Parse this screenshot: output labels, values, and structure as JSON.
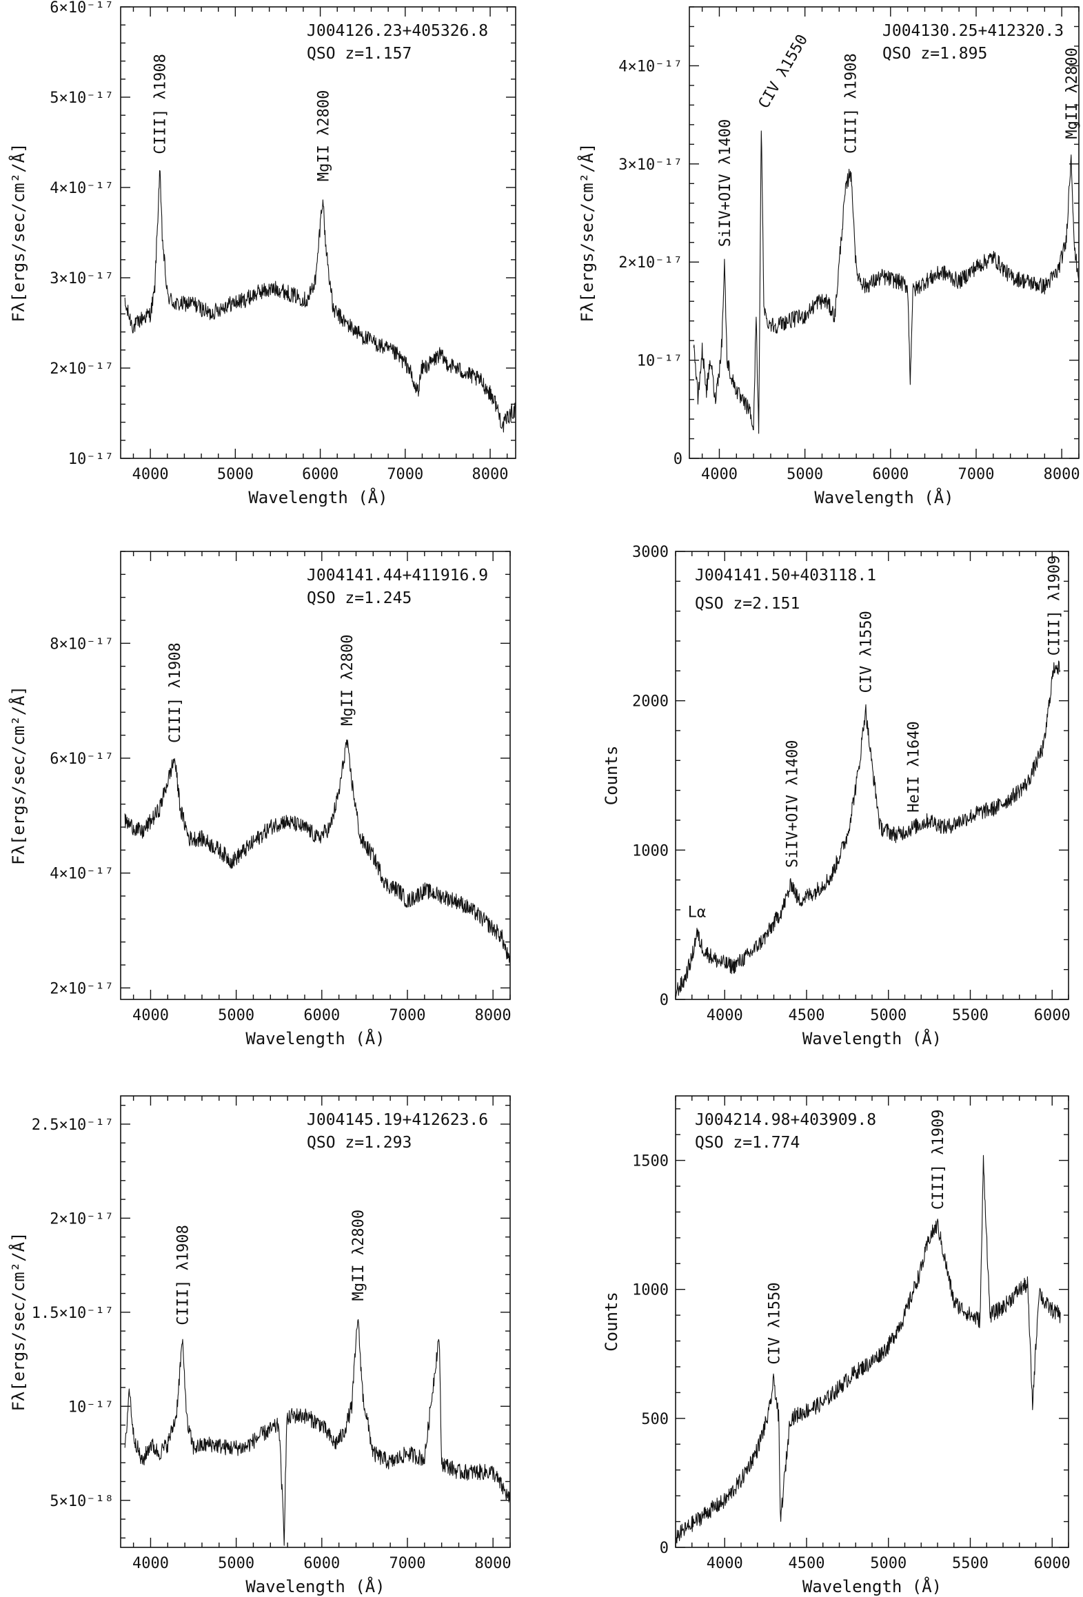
{
  "figure_title": "",
  "chart_data": [
    {
      "type": "line",
      "title": "J004126.23+405326.8",
      "subtitle": "QSO z=1.157",
      "xlabel": "Wavelength (Å)",
      "ylabel": "Fλ[ergs/sec/cm²/Å]",
      "xlim": [
        3650,
        8300
      ],
      "ylim": [
        1e-17,
        6e-17
      ],
      "xticks": [
        4000,
        5000,
        6000,
        7000,
        8000
      ],
      "yticks": [
        1e-17,
        2e-17,
        3e-17,
        4e-17,
        5e-17,
        6e-17
      ],
      "ytick_labels": [
        "10⁻¹⁷",
        "2×10⁻¹⁷",
        "3×10⁻¹⁷",
        "4×10⁻¹⁷",
        "5×10⁻¹⁷",
        "6×10⁻¹⁷"
      ],
      "grid": false,
      "lines": [
        {
          "label": "CIII] λ1908",
          "x": 4110
        },
        {
          "label": "MgII λ2800",
          "x": 6030
        }
      ],
      "series": [
        {
          "x": [
            3700,
            3800,
            3900,
            4000,
            4050,
            4080,
            4110,
            4140,
            4200,
            4300,
            4500,
            4700,
            4900,
            5100,
            5300,
            5500,
            5700,
            5850,
            5950,
            6000,
            6030,
            6060,
            6150,
            6300,
            6500,
            6700,
            6900,
            7050,
            7100,
            7150,
            7200,
            7300,
            7400,
            7500,
            7700,
            7900,
            8050,
            8150,
            8200,
            8300
          ],
          "y": [
            2.7e-17,
            2.45e-17,
            2.55e-17,
            2.6e-17,
            2.85e-17,
            3.5e-17,
            4.2e-17,
            3.45e-17,
            2.8e-17,
            2.7e-17,
            2.72e-17,
            2.6e-17,
            2.7e-17,
            2.75e-17,
            2.85e-17,
            2.88e-17,
            2.8e-17,
            2.75e-17,
            3e-17,
            3.6e-17,
            3.9e-17,
            3.4e-17,
            2.65e-17,
            2.5e-17,
            2.35e-17,
            2.25e-17,
            2.15e-17,
            2e-17,
            1.8e-17,
            1.75e-17,
            2e-17,
            2.05e-17,
            2.15e-17,
            2.05e-17,
            1.95e-17,
            1.85e-17,
            1.65e-17,
            1.35e-17,
            1.45e-17,
            1.55e-17
          ]
        }
      ]
    },
    {
      "type": "line",
      "title": "J004130.25+412320.3",
      "subtitle": "QSO z=1.895",
      "xlabel": "Wavelength (Å)",
      "ylabel": "Fλ[ergs/sec/cm²/Å]",
      "xlim": [
        3650,
        8200
      ],
      "ylim": [
        0,
        4.6e-17
      ],
      "xticks": [
        4000,
        5000,
        6000,
        7000,
        8000
      ],
      "yticks": [
        0,
        1e-17,
        2e-17,
        3e-17,
        4e-17
      ],
      "ytick_labels": [
        "0",
        "10⁻¹⁷",
        "2×10⁻¹⁷",
        "3×10⁻¹⁷",
        "4×10⁻¹⁷"
      ],
      "grid": false,
      "lines": [
        {
          "label": "SiIV+OIV λ1400",
          "x": 4060
        },
        {
          "label": "CIV λ1550",
          "x": 4490,
          "rotation": -60
        },
        {
          "label": "CIII] λ1908",
          "x": 5530
        },
        {
          "label": "MgII λ2800",
          "x": 8110
        }
      ],
      "series": [
        {
          "x": [
            3700,
            3750,
            3800,
            3850,
            3900,
            3950,
            4000,
            4030,
            4060,
            4090,
            4150,
            4250,
            4350,
            4400,
            4430,
            4460,
            4490,
            4520,
            4550,
            4650,
            4800,
            5000,
            5150,
            5250,
            5350,
            5420,
            5470,
            5530,
            5560,
            5600,
            5700,
            5900,
            6100,
            6200,
            6230,
            6260,
            6400,
            6600,
            6800,
            7000,
            7200,
            7400,
            7600,
            7800,
            7950,
            8050,
            8110,
            8150,
            8200
          ],
          "y": [
            1.2e-17,
            6e-18,
            1.1e-17,
            7e-18,
            1e-17,
            6e-18,
            9e-18,
            1.2e-17,
            2e-17,
            1e-17,
            8e-18,
            6e-18,
            5e-18,
            3e-18,
            1.5e-17,
            2e-18,
            3.4e-17,
            1.6e-17,
            1.4e-17,
            1.35e-17,
            1.4e-17,
            1.45e-17,
            1.6e-17,
            1.6e-17,
            1.45e-17,
            2.2e-17,
            2.7e-17,
            2.95e-17,
            2.6e-17,
            1.9e-17,
            1.75e-17,
            1.85e-17,
            1.8e-17,
            1.75e-17,
            8e-18,
            1.7e-17,
            1.8e-17,
            1.9e-17,
            1.8e-17,
            1.95e-17,
            2.05e-17,
            1.85e-17,
            1.8e-17,
            1.75e-17,
            1.9e-17,
            2.2e-17,
            3.1e-17,
            2.1e-17,
            1.85e-17
          ]
        }
      ]
    },
    {
      "type": "line",
      "title": "J004141.44+411916.9",
      "subtitle": "QSO z=1.245",
      "xlabel": "Wavelength (Å)",
      "ylabel": "Fλ[ergs/sec/cm²/Å]",
      "xlim": [
        3650,
        8200
      ],
      "ylim": [
        1.8e-17,
        9.6e-17
      ],
      "xticks": [
        4000,
        5000,
        6000,
        7000,
        8000
      ],
      "yticks": [
        2e-17,
        4e-17,
        6e-17,
        8e-17
      ],
      "ytick_labels": [
        "2×10⁻¹⁷",
        "4×10⁻¹⁷",
        "6×10⁻¹⁷",
        "8×10⁻¹⁷"
      ],
      "grid": false,
      "lines": [
        {
          "label": "CIII] λ1908",
          "x": 4280
        },
        {
          "label": "MgII λ2800",
          "x": 6290
        }
      ],
      "series": [
        {
          "x": [
            3700,
            3800,
            3900,
            4000,
            4100,
            4200,
            4280,
            4350,
            4450,
            4600,
            4800,
            4950,
            5100,
            5250,
            5400,
            5550,
            5700,
            5850,
            5950,
            6100,
            6200,
            6290,
            6350,
            6450,
            6600,
            6750,
            6900,
            7000,
            7100,
            7200,
            7400,
            7600,
            7800,
            7950,
            8100,
            8200
          ],
          "y": [
            4.9e-17,
            4.8e-17,
            4.7e-17,
            4.9e-17,
            5.1e-17,
            5.6e-17,
            6e-17,
            5.1e-17,
            4.6e-17,
            4.6e-17,
            4.4e-17,
            4.2e-17,
            4.4e-17,
            4.6e-17,
            4.8e-17,
            4.9e-17,
            4.85e-17,
            4.75e-17,
            4.6e-17,
            4.8e-17,
            5.4e-17,
            6.3e-17,
            5.6e-17,
            4.6e-17,
            4.3e-17,
            3.8e-17,
            3.7e-17,
            3.5e-17,
            3.6e-17,
            3.7e-17,
            3.6e-17,
            3.5e-17,
            3.3e-17,
            3.1e-17,
            2.9e-17,
            2.4e-17
          ]
        }
      ]
    },
    {
      "type": "line",
      "title": "J004141.50+403118.1",
      "subtitle": "QSO z=2.151",
      "xlabel": "Wavelength (Å)",
      "ylabel": "Counts",
      "xlim": [
        3700,
        6100
      ],
      "ylim": [
        0,
        3000
      ],
      "xticks": [
        4000,
        4500,
        5000,
        5500,
        6000
      ],
      "yticks": [
        0,
        1000,
        2000,
        3000
      ],
      "ytick_labels": [
        "0",
        "1000",
        "2000",
        "3000"
      ],
      "grid": false,
      "lines": [
        {
          "label": "Lα",
          "x": 3830,
          "horizontal": true
        },
        {
          "label": "SiIV+OIV λ1400",
          "x": 4410
        },
        {
          "label": "CIV λ1550",
          "x": 4860
        },
        {
          "label": "HeII λ1640",
          "x": 5150
        },
        {
          "label": "CIII] λ1909",
          "x": 6010
        }
      ],
      "series": [
        {
          "x": [
            3700,
            3750,
            3800,
            3830,
            3850,
            3880,
            3950,
            4050,
            4150,
            4250,
            4350,
            4410,
            4450,
            4550,
            4650,
            4750,
            4820,
            4860,
            4890,
            4950,
            5050,
            5150,
            5250,
            5350,
            5450,
            5550,
            5650,
            5750,
            5850,
            5950,
            6000,
            6020,
            6050
          ],
          "y": [
            50,
            120,
            280,
            450,
            380,
            320,
            260,
            220,
            300,
            420,
            600,
            780,
            660,
            720,
            820,
            1100,
            1550,
            1950,
            1650,
            1150,
            1100,
            1150,
            1200,
            1150,
            1200,
            1250,
            1280,
            1350,
            1450,
            1700,
            2150,
            2250,
            2200
          ]
        }
      ]
    },
    {
      "type": "line",
      "title": "J004145.19+412623.6",
      "subtitle": "QSO z=1.293",
      "xlabel": "Wavelength (Å)",
      "ylabel": "Fλ[ergs/sec/cm²/Å]",
      "xlim": [
        3650,
        8200
      ],
      "ylim": [
        2.5e-18,
        2.65e-17
      ],
      "xticks": [
        4000,
        5000,
        6000,
        7000,
        8000
      ],
      "yticks": [
        5e-18,
        1e-17,
        1.5e-17,
        2e-17,
        2.5e-17
      ],
      "ytick_labels": [
        "5×10⁻¹⁸",
        "10⁻¹⁷",
        "1.5×10⁻¹⁷",
        "2×10⁻¹⁷",
        "2.5×10⁻¹⁷"
      ],
      "grid": false,
      "lines": [
        {
          "label": "CIII] λ1908",
          "x": 4370
        },
        {
          "label": "MgII λ2800",
          "x": 6420
        }
      ],
      "series": [
        {
          "x": [
            3700,
            3750,
            3800,
            3900,
            4000,
            4100,
            4200,
            4300,
            4370,
            4430,
            4500,
            4700,
            4900,
            5100,
            5300,
            5500,
            5560,
            5590,
            5650,
            5800,
            6000,
            6150,
            6250,
            6350,
            6420,
            6480,
            6600,
            6800,
            7000,
            7200,
            7370,
            7400,
            7600,
            7800,
            8000,
            8200
          ],
          "y": [
            7.5e-18,
            1.1e-17,
            8.5e-18,
            7e-18,
            8e-18,
            7.5e-18,
            8e-18,
            9.5e-18,
            1.35e-17,
            9e-18,
            7.8e-18,
            8e-18,
            7.8e-18,
            7.8e-18,
            8.5e-18,
            9e-18,
            3e-18,
            9.2e-18,
            9.5e-18,
            9.5e-18,
            9e-18,
            8e-18,
            8.5e-18,
            1e-17,
            1.48e-17,
            1.05e-17,
            7.5e-18,
            7e-18,
            7.5e-18,
            7.2e-18,
            1.38e-17,
            7e-18,
            6.5e-18,
            6.5e-18,
            6.5e-18,
            5e-18
          ]
        }
      ]
    },
    {
      "type": "line",
      "title": "J004214.98+403909.8",
      "subtitle": "QSO z=1.774",
      "xlabel": "Wavelength (Å)",
      "ylabel": "Counts",
      "xlim": [
        3700,
        6100
      ],
      "ylim": [
        0,
        1750
      ],
      "xticks": [
        4000,
        4500,
        5000,
        5500,
        6000
      ],
      "yticks": [
        0,
        500,
        1000,
        1500
      ],
      "ytick_labels": [
        "0",
        "500",
        "1000",
        "1500"
      ],
      "grid": false,
      "lines": [
        {
          "label": "CIV λ1550",
          "x": 4300
        },
        {
          "label": "CIII] λ1909",
          "x": 5300
        }
      ],
      "series": [
        {
          "x": [
            3700,
            3800,
            3900,
            4000,
            4100,
            4200,
            4270,
            4300,
            4330,
            4340,
            4400,
            4500,
            4600,
            4700,
            4800,
            4900,
            5000,
            5100,
            5200,
            5250,
            5300,
            5350,
            5400,
            5500,
            5560,
            5580,
            5620,
            5700,
            5800,
            5850,
            5880,
            5920,
            5950,
            6000,
            6050
          ],
          "y": [
            40,
            90,
            140,
            180,
            260,
            380,
            520,
            650,
            500,
            100,
            500,
            530,
            560,
            620,
            680,
            720,
            780,
            900,
            1080,
            1200,
            1250,
            1100,
            950,
            900,
            880,
            1500,
            900,
            930,
            1000,
            1020,
            550,
            1000,
            950,
            920,
            900
          ]
        }
      ]
    }
  ]
}
